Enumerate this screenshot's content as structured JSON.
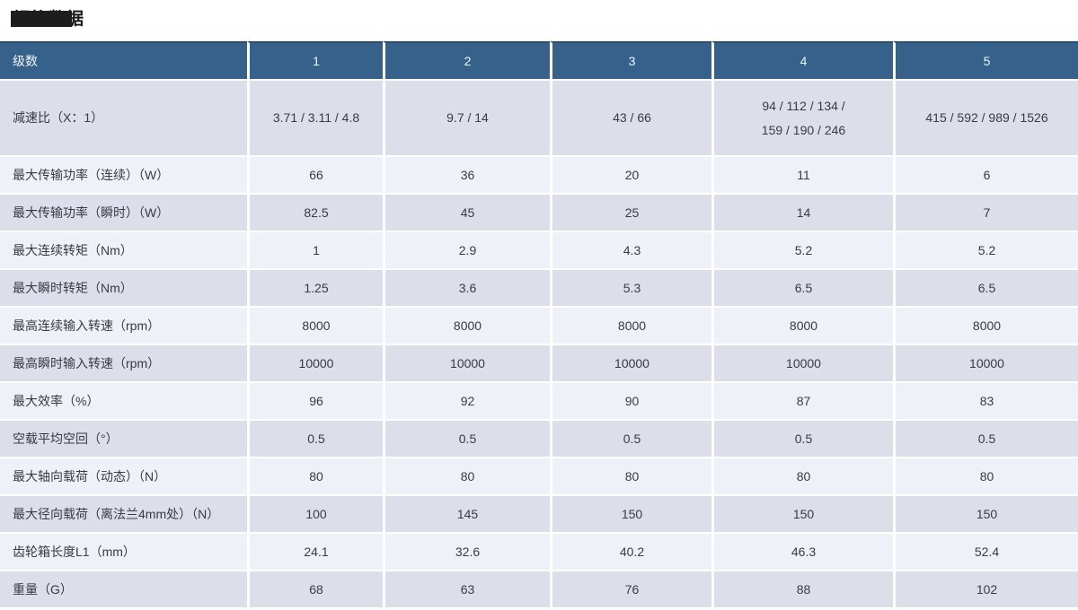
{
  "page": {
    "title": "规格数据"
  },
  "colors": {
    "header_bg": "#36618a",
    "header_top_border": "#2b4e6d",
    "row_stripe_dark": "#dcdfe9",
    "row_stripe_light": "#eef1f8",
    "header_text": "#f1f4f8",
    "cell_text": "#3a3a42",
    "title_redaction": "#1d1d1d"
  },
  "table": {
    "header": [
      "级数",
      "1",
      "2",
      "3",
      "4",
      "5"
    ],
    "rows": [
      {
        "label": "减速比（X：1）",
        "values": [
          "3.71 / 3.11 / 4.8",
          "9.7 / 14",
          "43 / 66",
          "94 / 112 / 134 /\n159 / 190 / 246",
          "415 / 592 / 989 / 1526"
        ]
      },
      {
        "label": "最大传输功率（连续）（W）",
        "values": [
          "66",
          "36",
          "20",
          "11",
          "6"
        ]
      },
      {
        "label": "最大传输功率（瞬时）（W）",
        "values": [
          "82.5",
          "45",
          "25",
          "14",
          "7"
        ]
      },
      {
        "label": "最大连续转矩（Nm）",
        "values": [
          "1",
          "2.9",
          "4.3",
          "5.2",
          "5.2"
        ]
      },
      {
        "label": "最大瞬时转矩（Nm）",
        "values": [
          "1.25",
          "3.6",
          "5.3",
          "6.5",
          "6.5"
        ]
      },
      {
        "label": "最高连续输入转速（rpm）",
        "values": [
          "8000",
          "8000",
          "8000",
          "8000",
          "8000"
        ]
      },
      {
        "label": "最高瞬时输入转速（rpm）",
        "values": [
          "10000",
          "10000",
          "10000",
          "10000",
          "10000"
        ]
      },
      {
        "label": "最大效率（%）",
        "values": [
          "96",
          "92",
          "90",
          "87",
          "83"
        ]
      },
      {
        "label": "空载平均空回（°）",
        "values": [
          "0.5",
          "0.5",
          "0.5",
          "0.5",
          "0.5"
        ]
      },
      {
        "label": "最大轴向载荷（动态）（N）",
        "values": [
          "80",
          "80",
          "80",
          "80",
          "80"
        ]
      },
      {
        "label": "最大径向载荷（离法兰4mm处）（N）",
        "values": [
          "100",
          "145",
          "150",
          "150",
          "150"
        ]
      },
      {
        "label": "齿轮箱长度L1（mm）",
        "values": [
          "24.1",
          "32.6",
          "40.2",
          "46.3",
          "52.4"
        ]
      },
      {
        "label": "重量（G）",
        "values": [
          "68",
          "63",
          "76",
          "88",
          "102"
        ]
      }
    ]
  },
  "chart_data": {
    "type": "table",
    "title": "规格数据",
    "columns": [
      "级数",
      "1",
      "2",
      "3",
      "4",
      "5"
    ],
    "rows": [
      [
        "减速比（X：1）",
        "3.71 / 3.11 / 4.8",
        "9.7 / 14",
        "43 / 66",
        "94 / 112 / 134 / 159 / 190 / 246",
        "415 / 592 / 989 / 1526"
      ],
      [
        "最大传输功率（连续）（W）",
        "66",
        "36",
        "20",
        "11",
        "6"
      ],
      [
        "最大传输功率（瞬时）（W）",
        "82.5",
        "45",
        "25",
        "14",
        "7"
      ],
      [
        "最大连续转矩（Nm）",
        "1",
        "2.9",
        "4.3",
        "5.2",
        "5.2"
      ],
      [
        "最大瞬时转矩（Nm）",
        "1.25",
        "3.6",
        "5.3",
        "6.5",
        "6.5"
      ],
      [
        "最高连续输入转速（rpm）",
        "8000",
        "8000",
        "8000",
        "8000",
        "8000"
      ],
      [
        "最高瞬时输入转速（rpm）",
        "10000",
        "10000",
        "10000",
        "10000",
        "10000"
      ],
      [
        "最大效率（%）",
        "96",
        "92",
        "90",
        "87",
        "83"
      ],
      [
        "空载平均空回（°）",
        "0.5",
        "0.5",
        "0.5",
        "0.5",
        "0.5"
      ],
      [
        "最大轴向载荷（动态）（N）",
        "80",
        "80",
        "80",
        "80",
        "80"
      ],
      [
        "最大径向载荷（离法兰4mm处）（N）",
        "100",
        "145",
        "150",
        "150",
        "150"
      ],
      [
        "齿轮箱长度L1（mm）",
        "24.1",
        "32.6",
        "40.2",
        "46.3",
        "52.4"
      ],
      [
        "重量（G）",
        "68",
        "63",
        "76",
        "88",
        "102"
      ]
    ]
  }
}
